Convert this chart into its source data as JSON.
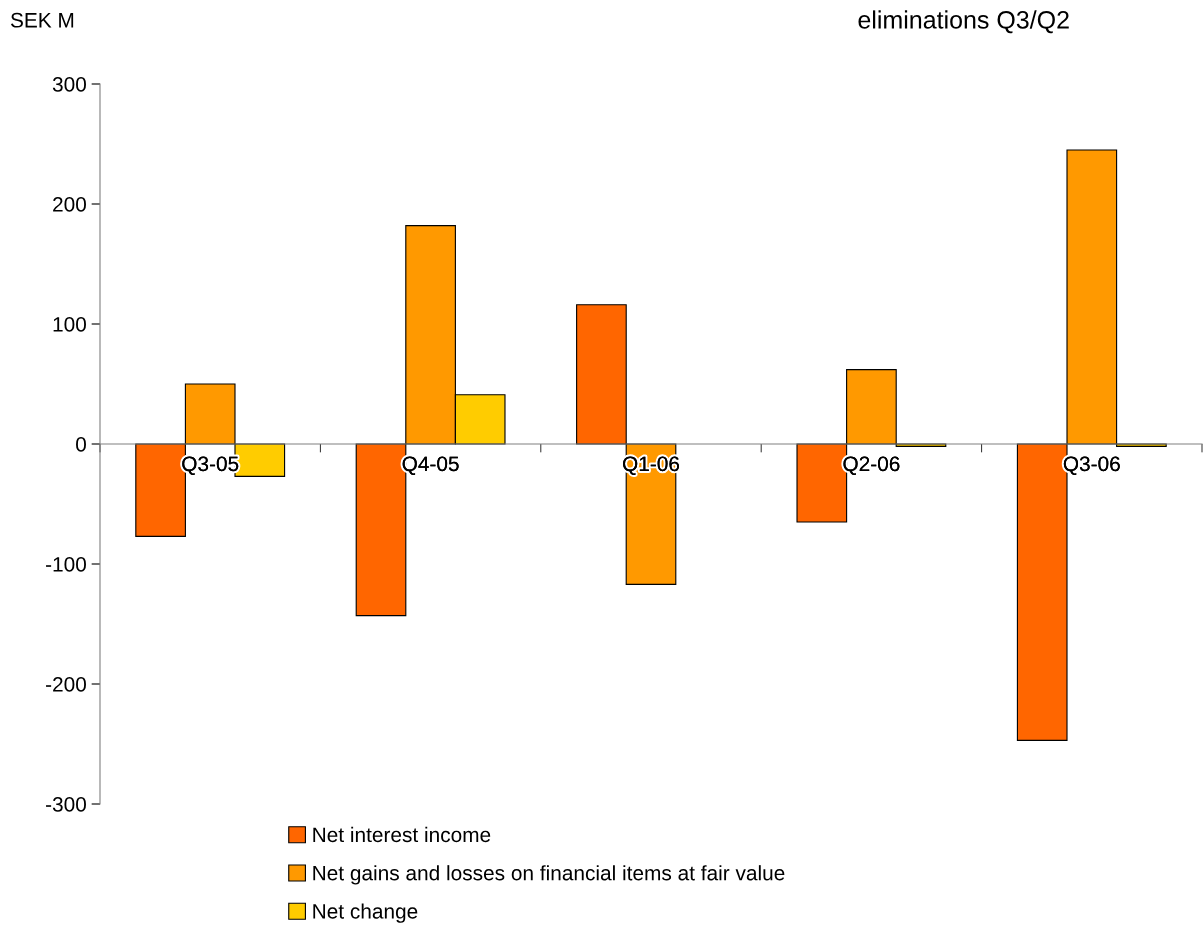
{
  "chart_data": {
    "type": "bar",
    "title": "eliminations Q3/Q2",
    "ylabel": "SEK M",
    "categories": [
      "Q3-05",
      "Q4-05",
      "Q1-06",
      "Q2-06",
      "Q3-06"
    ],
    "series": [
      {
        "name": "Net interest income",
        "color": "#ff6600",
        "values": [
          -77,
          -143,
          116,
          -65,
          -247
        ]
      },
      {
        "name": "Net gains and losses on financial items at fair value",
        "color": "#ff9900",
        "values": [
          50,
          182,
          -117,
          62,
          245
        ]
      },
      {
        "name": "Net change",
        "color": "#ffcc00",
        "values": [
          -27,
          41,
          null,
          -2,
          -2
        ]
      }
    ],
    "ylim": [
      -300,
      300
    ],
    "yticks": [
      -300,
      -200,
      -100,
      0,
      100,
      200,
      300
    ],
    "grid": false,
    "legend": "bottom"
  }
}
